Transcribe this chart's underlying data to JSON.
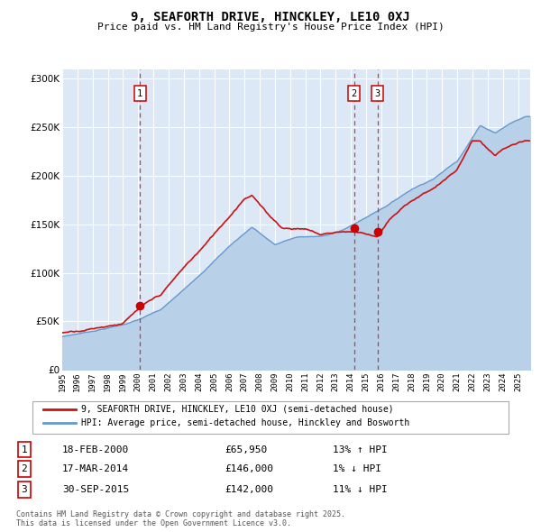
{
  "title": "9, SEAFORTH DRIVE, HINCKLEY, LE10 0XJ",
  "subtitle": "Price paid vs. HM Land Registry's House Price Index (HPI)",
  "background_color": "#ffffff",
  "plot_bg_color": "#dce8f5",
  "grid_color": "#ffffff",
  "ylim": [
    0,
    310000
  ],
  "xlim_start": 1995.0,
  "xlim_end": 2025.8,
  "yticks": [
    0,
    50000,
    100000,
    150000,
    200000,
    250000,
    300000
  ],
  "ytick_labels": [
    "£0",
    "£50K",
    "£100K",
    "£150K",
    "£200K",
    "£250K",
    "£300K"
  ],
  "xtick_years": [
    1995,
    1996,
    1997,
    1998,
    1999,
    2000,
    2001,
    2002,
    2003,
    2004,
    2005,
    2006,
    2007,
    2008,
    2009,
    2010,
    2011,
    2012,
    2013,
    2014,
    2015,
    2016,
    2017,
    2018,
    2019,
    2020,
    2021,
    2022,
    2023,
    2024,
    2025
  ],
  "sale_dates": [
    2000.12,
    2014.21,
    2015.75
  ],
  "sale_prices": [
    65950,
    146000,
    142000
  ],
  "sale_labels": [
    "1",
    "2",
    "3"
  ],
  "vline_color": "#dd2222",
  "sale_marker_color": "#cc0000",
  "hpi_line_color": "#6699cc",
  "hpi_fill_color": "#b8d0e8",
  "price_line_color": "#cc1111",
  "legend_entries": [
    "9, SEAFORTH DRIVE, HINCKLEY, LE10 0XJ (semi-detached house)",
    "HPI: Average price, semi-detached house, Hinckley and Bosworth"
  ],
  "table_data": [
    [
      "1",
      "18-FEB-2000",
      "£65,950",
      "13% ↑ HPI"
    ],
    [
      "2",
      "17-MAR-2014",
      "£146,000",
      "1% ↓ HPI"
    ],
    [
      "3",
      "30-SEP-2015",
      "£142,000",
      "11% ↓ HPI"
    ]
  ],
  "footnote": "Contains HM Land Registry data © Crown copyright and database right 2025.\nThis data is licensed under the Open Government Licence v3.0."
}
